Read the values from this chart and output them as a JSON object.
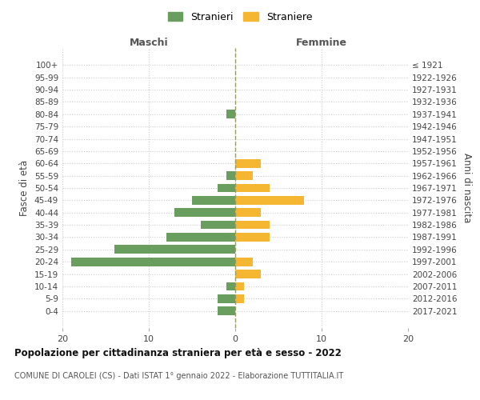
{
  "age_groups": [
    "0-4",
    "5-9",
    "10-14",
    "15-19",
    "20-24",
    "25-29",
    "30-34",
    "35-39",
    "40-44",
    "45-49",
    "50-54",
    "55-59",
    "60-64",
    "65-69",
    "70-74",
    "75-79",
    "80-84",
    "85-89",
    "90-94",
    "95-99",
    "100+"
  ],
  "birth_years": [
    "2017-2021",
    "2012-2016",
    "2007-2011",
    "2002-2006",
    "1997-2001",
    "1992-1996",
    "1987-1991",
    "1982-1986",
    "1977-1981",
    "1972-1976",
    "1967-1971",
    "1962-1966",
    "1957-1961",
    "1952-1956",
    "1947-1951",
    "1942-1946",
    "1937-1941",
    "1932-1936",
    "1927-1931",
    "1922-1926",
    "≤ 1921"
  ],
  "maschi": [
    2,
    2,
    1,
    0,
    19,
    14,
    8,
    4,
    7,
    5,
    2,
    1,
    0,
    0,
    0,
    0,
    1,
    0,
    0,
    0,
    0
  ],
  "femmine": [
    0,
    1,
    1,
    3,
    2,
    0,
    4,
    4,
    3,
    8,
    4,
    2,
    3,
    0,
    0,
    0,
    0,
    0,
    0,
    0,
    0
  ],
  "color_maschi": "#6a9e5e",
  "color_femmine": "#f5b731",
  "xlim": 20,
  "title": "Popolazione per cittadinanza straniera per età e sesso - 2022",
  "subtitle": "COMUNE DI CAROLEI (CS) - Dati ISTAT 1° gennaio 2022 - Elaborazione TUTTITALIA.IT",
  "ylabel_left": "Fasce di età",
  "ylabel_right": "Anni di nascita",
  "xlabel_maschi": "Maschi",
  "xlabel_femmine": "Femmine",
  "legend_stranieri": "Stranieri",
  "legend_straniere": "Straniere",
  "background_color": "#ffffff",
  "grid_color": "#cccccc",
  "center_line_color": "#999966"
}
